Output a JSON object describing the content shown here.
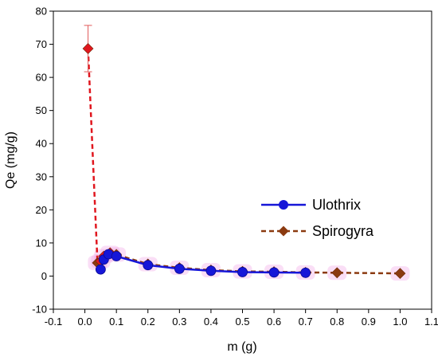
{
  "chart_data": {
    "type": "line",
    "xlabel": "m (g)",
    "ylabel": "Qe (mg/g)",
    "xlim": [
      -0.1,
      1.1
    ],
    "ylim": [
      -10,
      80
    ],
    "xticks": [
      -0.1,
      0.0,
      0.1,
      0.2,
      0.3,
      0.4,
      0.5,
      0.6,
      0.7,
      0.8,
      0.9,
      1.0,
      1.1
    ],
    "xtick_labels": [
      "-0.1",
      "0.0",
      "0.1",
      "0.2",
      "0.3",
      "0.4",
      "0.5",
      "0.6",
      "0.7",
      "0.8",
      "0.9",
      "1.0",
      "1.1"
    ],
    "yticks": [
      -10,
      0,
      10,
      20,
      30,
      40,
      50,
      60,
      70,
      80
    ],
    "ytick_labels": [
      "-10",
      "0",
      "10",
      "20",
      "30",
      "40",
      "50",
      "60",
      "70",
      "80"
    ],
    "grid": false,
    "legend_position": "right",
    "series": [
      {
        "name": "Ulothrix",
        "marker": "circle",
        "line_style": "solid",
        "color": "#1616d8",
        "points": [
          {
            "x": 0.05,
            "y": 2.0
          },
          {
            "x": 0.06,
            "y": 5.0
          },
          {
            "x": 0.075,
            "y": 6.6
          },
          {
            "x": 0.1,
            "y": 6.0
          },
          {
            "x": 0.2,
            "y": 3.3
          },
          {
            "x": 0.3,
            "y": 2.2
          },
          {
            "x": 0.4,
            "y": 1.6
          },
          {
            "x": 0.5,
            "y": 1.2
          },
          {
            "x": 0.6,
            "y": 1.1
          },
          {
            "x": 0.7,
            "y": 1.0
          }
        ]
      },
      {
        "name": "Spirogyra",
        "marker": "diamond",
        "line_style": "dashed",
        "color": "#8b3a10",
        "highlight_color": "#e0161e",
        "points": [
          {
            "x": 0.01,
            "y": 68.7,
            "error": 7.0
          },
          {
            "x": 0.04,
            "y": 4.0
          },
          {
            "x": 0.05,
            "y": 4.5
          },
          {
            "x": 0.06,
            "y": 6.0
          },
          {
            "x": 0.08,
            "y": 7.0
          },
          {
            "x": 0.1,
            "y": 6.5
          },
          {
            "x": 0.2,
            "y": 3.6
          },
          {
            "x": 0.3,
            "y": 2.5
          },
          {
            "x": 0.4,
            "y": 1.8
          },
          {
            "x": 0.5,
            "y": 1.4
          },
          {
            "x": 0.6,
            "y": 1.3
          },
          {
            "x": 0.7,
            "y": 1.1
          },
          {
            "x": 0.8,
            "y": 1.0
          },
          {
            "x": 1.0,
            "y": 0.8
          }
        ]
      }
    ]
  }
}
